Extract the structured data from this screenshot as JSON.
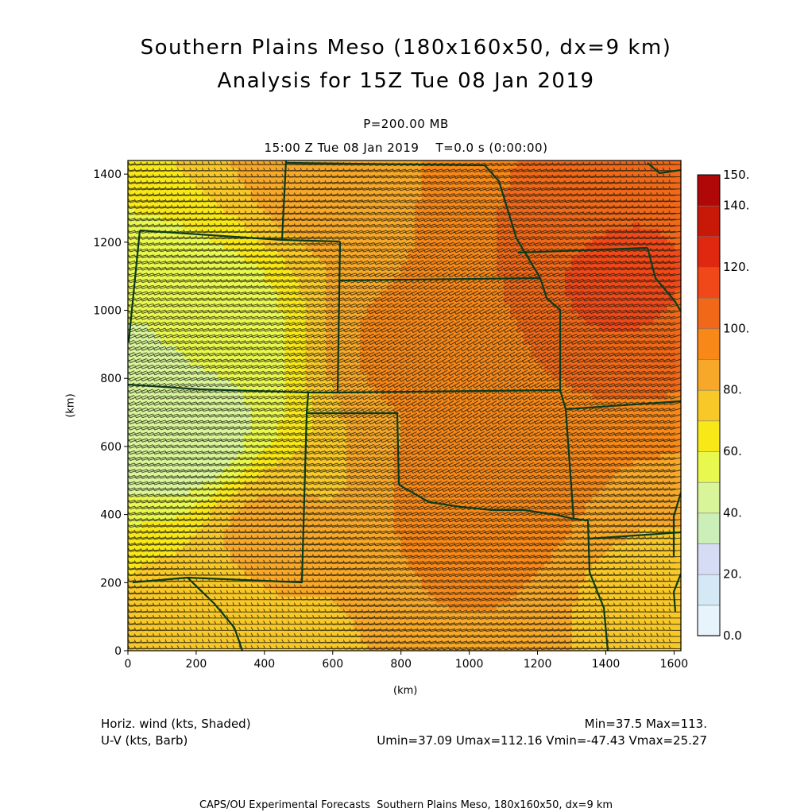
{
  "header": {
    "title_line1": "Southern Plains Meso (180x160x50, dx=9 km)",
    "title_line2": "Analysis for 15Z Tue 08 Jan 2019",
    "level": "P=200.00 MB",
    "valid": "15:00 Z Tue 08 Jan 2019    T=0.0 s (0:00:00)"
  },
  "footer": {
    "field1": "Horiz. wind (kts, Shaded)",
    "field2": "U-V (kts, Barb)",
    "minmax": "Min=37.5 Max=113.",
    "uvstats": "Umin=37.09 Umax=112.16 Vmin=-47.43 Vmax=25.27",
    "credit": "CAPS/OU Experimental Forecasts  Southern Plains Meso, 180x160x50, dx=9 km"
  },
  "chart_data": {
    "type": "heatmap",
    "xlabel": "(km)",
    "ylabel": "(km)",
    "xlim": [
      0,
      1620
    ],
    "ylim": [
      0,
      1440
    ],
    "x_ticks": [
      "0",
      "200",
      "400",
      "600",
      "800",
      "1000",
      "1200",
      "1400",
      "1600"
    ],
    "y_ticks": [
      "0",
      "200",
      "400",
      "600",
      "800",
      "1000",
      "1200",
      "1400"
    ],
    "colorbar": {
      "labels": [
        "0.0",
        "20.",
        "40.",
        "60.",
        "80.",
        "100.",
        "120.",
        "140.",
        "150."
      ],
      "levels": [
        0,
        10,
        20,
        30,
        40,
        50,
        60,
        70,
        80,
        90,
        100,
        110,
        120,
        130,
        140,
        150
      ],
      "colors": [
        "#e8f4fb",
        "#d5e8f6",
        "#d5dcf4",
        "#cceeb8",
        "#d8f59a",
        "#e8f84e",
        "#f8e818",
        "#f8c828",
        "#f8a828",
        "#f88818",
        "#f06818",
        "#f04818",
        "#e02810",
        "#c81808",
        "#b00808"
      ]
    },
    "field_min": 37.5,
    "field_max": 113.0,
    "wind_centers": [
      {
        "x": 180,
        "y": 620,
        "speed": 40
      },
      {
        "x": 60,
        "y": 720,
        "speed": 45
      },
      {
        "x": 250,
        "y": 950,
        "speed": 52
      },
      {
        "x": 1400,
        "y": 1130,
        "speed": 113
      },
      {
        "x": 1250,
        "y": 1300,
        "speed": 100
      },
      {
        "x": 1050,
        "y": 470,
        "speed": 100
      },
      {
        "x": 800,
        "y": 900,
        "speed": 92
      },
      {
        "x": 150,
        "y": 120,
        "speed": 72
      },
      {
        "x": 1500,
        "y": 150,
        "speed": 78
      },
      {
        "x": 400,
        "y": 350,
        "speed": 84
      },
      {
        "x": 600,
        "y": 1420,
        "speed": 88
      }
    ]
  }
}
